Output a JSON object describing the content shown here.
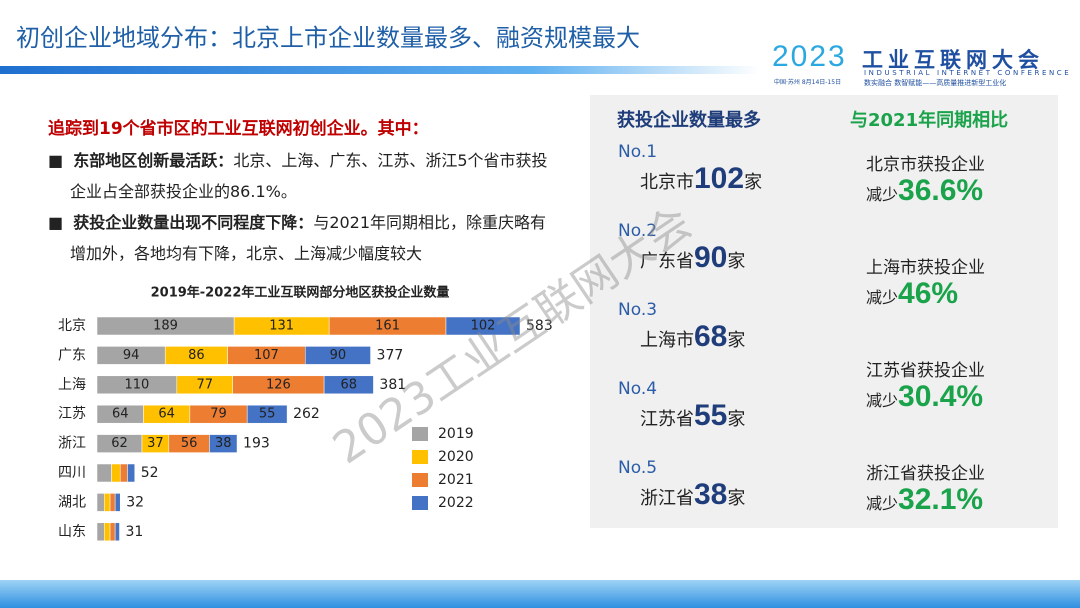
{
  "header": {
    "title": "初创企业地域分布：北京上市企业数量最多、融资规模最大",
    "logo": {
      "year": "2023",
      "name": "工业互联网大会",
      "english": "INDUSTRIAL INTERNET CONFERENCE",
      "info": "中国·苏州 8月14日-15日",
      "slogan": "数实融合 数智赋能——高质量推进新型工业化"
    }
  },
  "intro": {
    "heading": "追踪到19个省市区的工业互联网初创企业。其中：",
    "bullets": [
      {
        "bold": "东部地区创新最活跃：",
        "text": "北京、上海、广东、江苏、浙江5个省市获投企业占全部获投企业的86.1%。"
      },
      {
        "bold": "获投企业数量出现不同程度下降：",
        "text": "与2021年同期相比，除重庆略有增加外，各地均有下降，北京、上海减少幅度较大"
      }
    ]
  },
  "chart_data": {
    "type": "stacked-bar-horizontal",
    "title": "2019年-2022年工业互联网部分地区获投企业数量",
    "categories": [
      "北京",
      "广东",
      "上海",
      "江苏",
      "浙江",
      "四川",
      "湖北",
      "山东"
    ],
    "series": [
      {
        "name": "2019",
        "color": "#a5a5a5",
        "values": [
          189,
          94,
          110,
          64,
          62,
          20,
          10,
          10
        ]
      },
      {
        "name": "2020",
        "color": "#ffc000",
        "values": [
          131,
          86,
          77,
          64,
          37,
          12,
          8,
          8
        ]
      },
      {
        "name": "2021",
        "color": "#ed7d31",
        "values": [
          161,
          107,
          126,
          79,
          56,
          10,
          7,
          7
        ]
      },
      {
        "name": "2022",
        "color": "#4472c4",
        "values": [
          102,
          90,
          68,
          55,
          38,
          10,
          7,
          6
        ]
      }
    ],
    "totals": [
      583,
      377,
      381,
      262,
      193,
      52,
      32,
      31
    ]
  },
  "panel": {
    "left_title": "获投企业数量最多",
    "right_title": "与2021年同期相比",
    "ranks": [
      {
        "rank": "No.1",
        "place": "北京市",
        "count": "102",
        "unit": "家"
      },
      {
        "rank": "No.2",
        "place": "广东省",
        "count": "90",
        "unit": "家"
      },
      {
        "rank": "No.3",
        "place": "上海市",
        "count": "68",
        "unit": "家"
      },
      {
        "rank": "No.4",
        "place": "江苏省",
        "count": "55",
        "unit": "家"
      },
      {
        "rank": "No.5",
        "place": "浙江省",
        "count": "38",
        "unit": "家"
      }
    ],
    "changes": [
      {
        "label": "北京市获投企业",
        "word": "减少",
        "pct": "36.6%"
      },
      {
        "label": "上海市获投企业",
        "word": "减少",
        "pct": "46%"
      },
      {
        "label": "江苏省获投企业",
        "word": "减少",
        "pct": "30.4%"
      },
      {
        "label": "浙江省获投企业",
        "word": "减少",
        "pct": "32.1%"
      }
    ]
  },
  "watermark": "2023工业互联网大会"
}
